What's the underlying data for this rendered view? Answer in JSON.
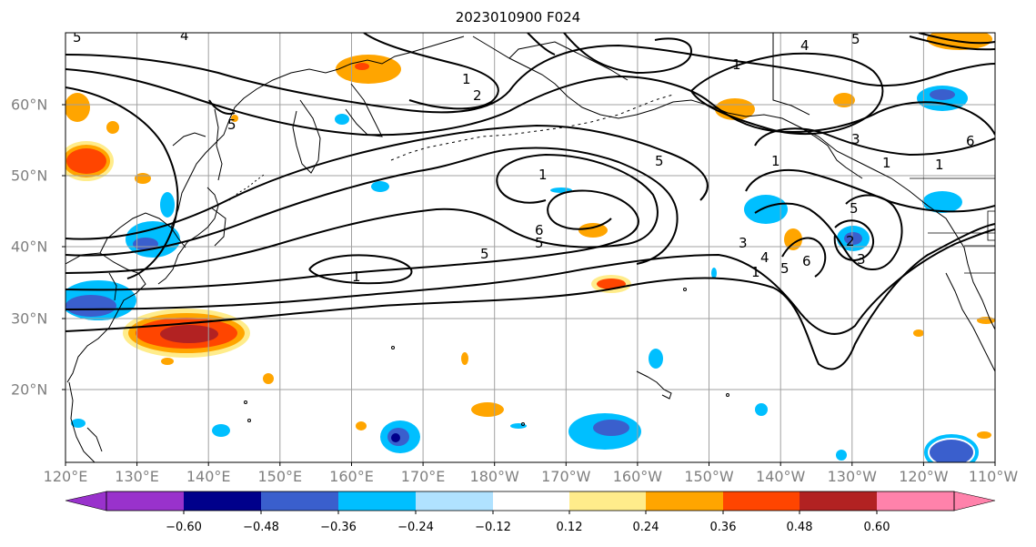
{
  "title": "2023010900 F024",
  "map": {
    "lon_labels": [
      "120°E",
      "130°E",
      "140°E",
      "150°E",
      "160°E",
      "170°E",
      "180°W",
      "170°W",
      "160°W",
      "150°W",
      "140°W",
      "130°W",
      "120°W",
      "110°W"
    ],
    "lat_labels": [
      "60°N",
      "50°N",
      "40°N",
      "30°N",
      "20°N"
    ],
    "contour_labels": [
      "5",
      "4",
      "5",
      "1",
      "2",
      "1",
      "5",
      "1",
      "5",
      "6",
      "5",
      "1",
      "4",
      "5",
      "1",
      "1",
      "5",
      "3",
      "1",
      "3",
      "4",
      "6",
      "5",
      "1",
      "2",
      "3",
      "6"
    ],
    "coastline_color": "#000000",
    "grid_color": "#a0a0a0"
  },
  "colorbar": {
    "ticks": [
      "−0.60",
      "−0.48",
      "−0.36",
      "−0.24",
      "−0.12",
      "0.12",
      "0.24",
      "0.36",
      "0.48",
      "0.60"
    ],
    "colors": [
      "#9932cc",
      "#00008b",
      "#3a5fcd",
      "#00bfff",
      "#b0e2ff",
      "#ffffff",
      "#ffec8b",
      "#ffa500",
      "#ff4500",
      "#b22222",
      "#ff82ab"
    ]
  }
}
